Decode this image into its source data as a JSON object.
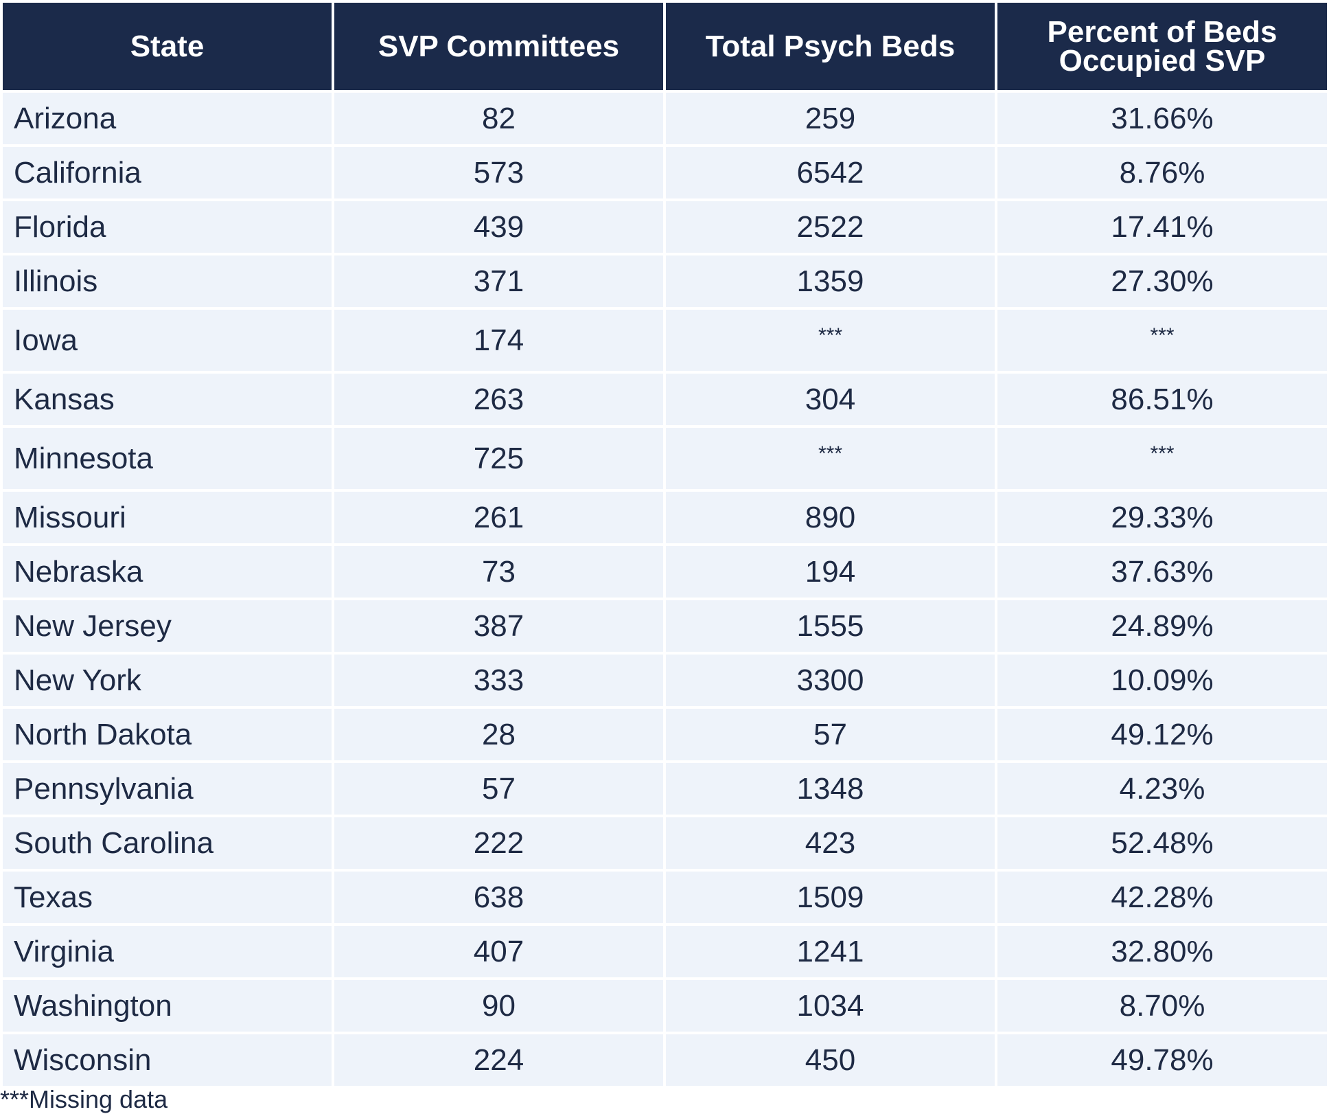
{
  "table": {
    "headers": [
      "State",
      "SVP Committees",
      "Total Psych Beds",
      "Percent of Beds Occupied SVP"
    ],
    "header_lines": {
      "col4_line1": "Percent of Beds",
      "col4_line2": "Occupied SVP"
    },
    "rows": [
      [
        "Arizona",
        "82",
        "259",
        "31.66%"
      ],
      [
        "California",
        "573",
        "6542",
        "8.76%"
      ],
      [
        "Florida",
        "439",
        "2522",
        "17.41%"
      ],
      [
        "Illinois",
        "371",
        "1359",
        "27.30%"
      ],
      [
        "Iowa",
        "174",
        "***",
        "***"
      ],
      [
        "Kansas",
        "263",
        "304",
        "86.51%"
      ],
      [
        "Minnesota",
        "725",
        "***",
        "***"
      ],
      [
        "Missouri",
        "261",
        "890",
        "29.33%"
      ],
      [
        "Nebraska",
        "73",
        "194",
        "37.63%"
      ],
      [
        "New Jersey",
        "387",
        "1555",
        "24.89%"
      ],
      [
        "New York",
        "333",
        "3300",
        "10.09%"
      ],
      [
        "North Dakota",
        "28",
        "57",
        "49.12%"
      ],
      [
        "Pennsylvania",
        "57",
        "1348",
        "4.23%"
      ],
      [
        "South Carolina",
        "222",
        "423",
        "52.48%"
      ],
      [
        "Texas",
        "638",
        "1509",
        "42.28%"
      ],
      [
        "Virginia",
        "407",
        "1241",
        "32.80%"
      ],
      [
        "Washington",
        "90",
        "1034",
        "8.70%"
      ],
      [
        "Wisconsin",
        "224",
        "450",
        "49.78%"
      ]
    ]
  },
  "footnote": "***Missing data",
  "colors": {
    "header_bg": "#1b2a4a",
    "header_text": "#ffffff",
    "cell_bg": "#eef3fa",
    "text": "#1e2a44"
  }
}
